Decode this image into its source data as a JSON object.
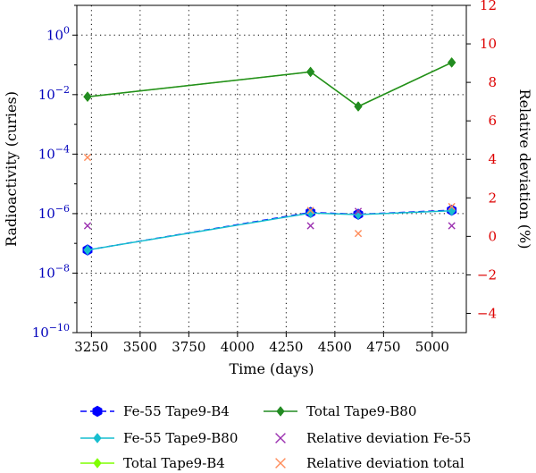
{
  "chart_data": {
    "type": "line",
    "xlabel": "Time (days)",
    "ylabel": "Radioactivity (curies)",
    "y2label": "Relative deviation (%)",
    "xlim": [
      3175,
      5175
    ],
    "xticks": [
      3250,
      3500,
      3750,
      4000,
      4250,
      4500,
      4750,
      5000
    ],
    "xtick_labels": [
      "3250",
      "3500",
      "3750",
      "4000",
      "4250",
      "4500",
      "4750",
      "5000"
    ],
    "yscale": "log",
    "ylim_exp": [
      -10,
      1
    ],
    "yticks_exp": [
      0,
      -2,
      -4,
      -6,
      -8,
      -10
    ],
    "ytick_base": "10",
    "ytick_exps": [
      "0",
      "−2",
      "−4",
      "−6",
      "−8",
      "−10"
    ],
    "y2lim": [
      -5,
      12
    ],
    "y2ticks": [
      -4,
      -2,
      0,
      2,
      4,
      6,
      8,
      10,
      12
    ],
    "y2tick_labels": [
      "−4",
      "−2",
      "0",
      "2",
      "4",
      "6",
      "8",
      "10",
      "12"
    ],
    "grid": true,
    "legend_position": "bottom",
    "colors": {
      "left_axis": "#0000bb",
      "right_axis": "#dd0000"
    },
    "series": [
      {
        "name": "Fe-55 Tape9-B4",
        "axis": "left",
        "color": "#0000ff",
        "dash": true,
        "marker": "hexagon",
        "x": [
          3230,
          4375,
          4620,
          5100
        ],
        "y": [
          6e-08,
          1.1e-06,
          9.5e-07,
          1.3e-06
        ]
      },
      {
        "name": "Fe-55 Tape9-B80",
        "axis": "left",
        "color": "#17becf",
        "dash": false,
        "marker": "diamond",
        "x": [
          3230,
          4375,
          4620,
          5100
        ],
        "y": [
          6e-08,
          1.05e-06,
          9.3e-07,
          1.25e-06
        ]
      },
      {
        "name": "Total Tape9-B4",
        "axis": "left",
        "color": "#7fff00",
        "dash": false,
        "marker": "diamond",
        "x": [
          3230,
          4375,
          4620,
          5100
        ],
        "y": [
          0.0085,
          0.058,
          0.004,
          0.12
        ]
      },
      {
        "name": "Total Tape9-B80",
        "axis": "left",
        "color": "#228b22",
        "dash": false,
        "marker": "diamond",
        "x": [
          3230,
          4375,
          4620,
          5100
        ],
        "y": [
          0.0085,
          0.058,
          0.004,
          0.12
        ]
      },
      {
        "name": "Relative deviation Fe-55",
        "axis": "right",
        "color": "#9b30b0",
        "marker": "x",
        "line": false,
        "x": [
          3230,
          4375,
          4620,
          5100
        ],
        "y": [
          0.55,
          0.55,
          1.3,
          0.55
        ]
      },
      {
        "name": "Relative deviation total",
        "axis": "right",
        "color": "#ff8c5a",
        "marker": "x",
        "line": false,
        "x": [
          3230,
          4375,
          4620,
          5100
        ],
        "y": [
          4.1,
          1.35,
          0.15,
          1.55
        ]
      }
    ]
  }
}
